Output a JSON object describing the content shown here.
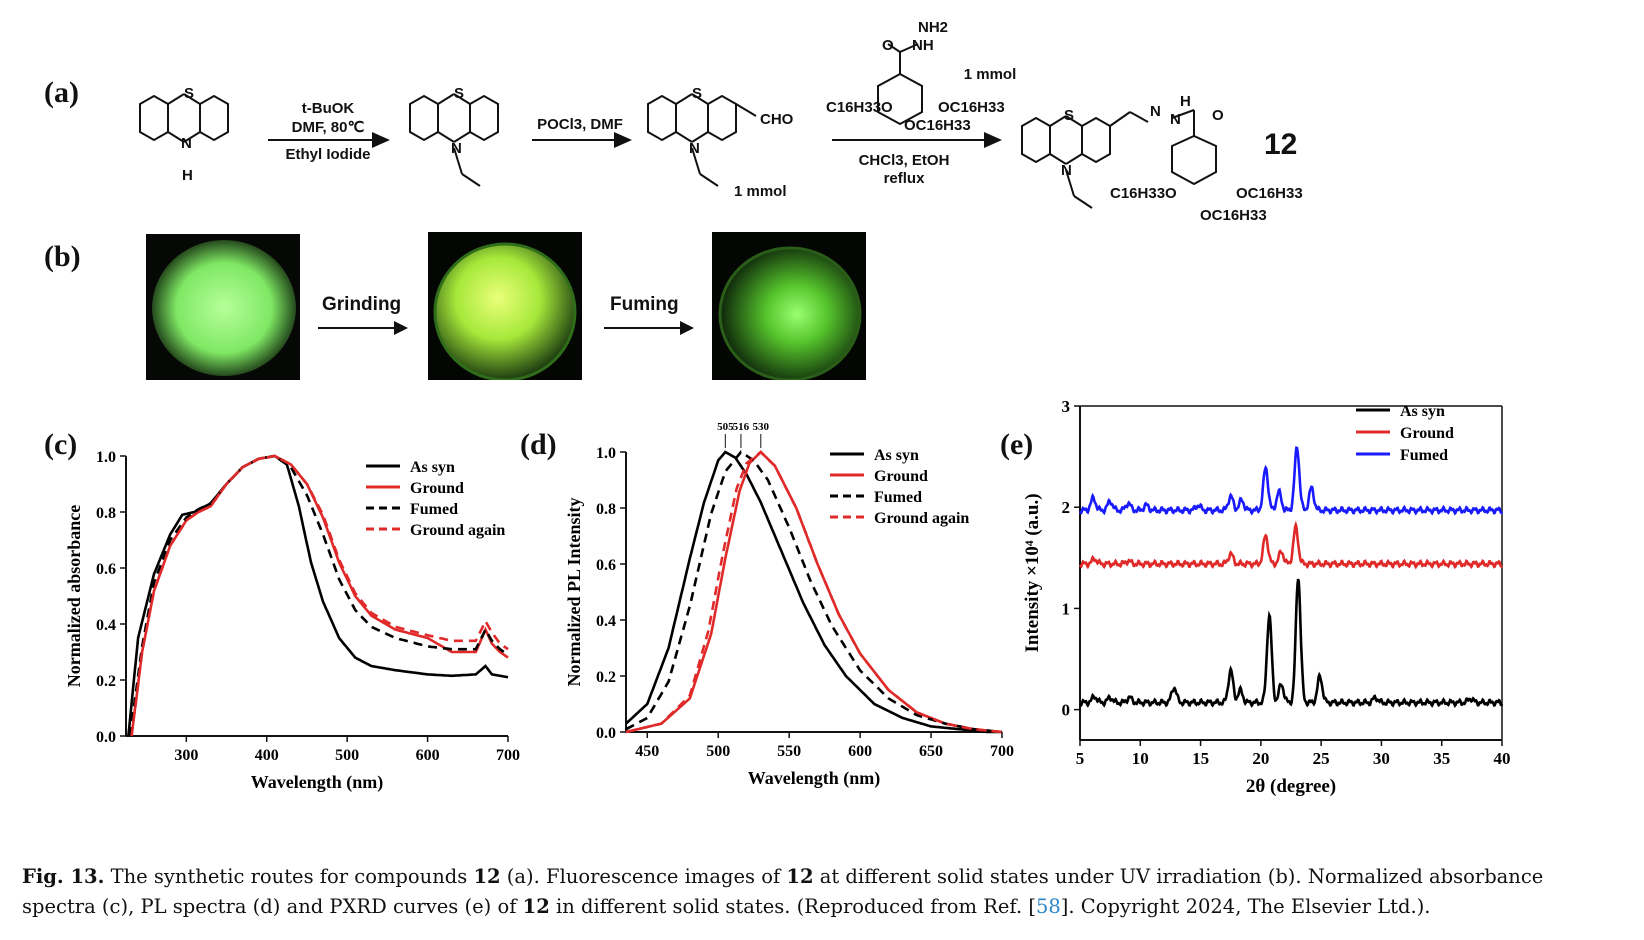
{
  "panels": {
    "a": "(a)",
    "b": "(b)",
    "c": "(c)",
    "d": "(d)",
    "e": "(e)"
  },
  "scheme": {
    "step1_top": "t-BuOK",
    "step1_mid": "DMF, 80℃",
    "step1_bottom": "Ethyl Iodide",
    "step2_top": "POCl3, DMF",
    "step3_top": "1 mmol",
    "step3_bottom1": "CHCl3, EtOH",
    "step3_bottom2": "reflux",
    "aldehyde_amount": "1 mmol",
    "cho": "CHO",
    "product_label": "12",
    "S": "S",
    "N": "N",
    "H": "H",
    "O": "O",
    "NH": "NH",
    "NH2": "NH2",
    "OC16H33": "OC16H33",
    "C16H33O": "C16H33O"
  },
  "images": {
    "grinding_label": "Grinding",
    "fuming_label": "Fuming",
    "colors": {
      "glow": "#7dff5c",
      "dim": "#2f8a1c",
      "bg": "#050805"
    }
  },
  "chart_data": [
    {
      "type": "line",
      "panel": "c",
      "xlabel": "Wavelength (nm)",
      "ylabel": "Normalized absorbance",
      "xlim": [
        225,
        700
      ],
      "ylim": [
        0,
        1.0
      ],
      "xticks": [
        300,
        400,
        500,
        600,
        700
      ],
      "yticks": [
        0.0,
        0.2,
        0.4,
        0.6,
        0.8,
        1.0
      ],
      "xtick_labels": [
        "300",
        "400",
        "500",
        "600",
        "700"
      ],
      "ytick_labels": [
        "0.0",
        "0.2",
        "0.4",
        "0.6",
        "0.8",
        "1.0"
      ],
      "legend": "top-right",
      "series": [
        {
          "name": "As syn",
          "color": "#000000",
          "dash": false,
          "x": [
            228,
            240,
            260,
            280,
            295,
            310,
            330,
            350,
            370,
            390,
            410,
            425,
            440,
            455,
            470,
            490,
            510,
            530,
            560,
            600,
            630,
            660,
            672,
            680,
            690,
            700
          ],
          "y": [
            0.0,
            0.35,
            0.58,
            0.72,
            0.79,
            0.8,
            0.83,
            0.9,
            0.96,
            0.99,
            1.0,
            0.97,
            0.82,
            0.62,
            0.48,
            0.35,
            0.28,
            0.25,
            0.235,
            0.22,
            0.215,
            0.22,
            0.25,
            0.22,
            0.215,
            0.21
          ]
        },
        {
          "name": "Ground",
          "color": "#e02a2a",
          "dash": false,
          "x": [
            232,
            245,
            260,
            280,
            300,
            315,
            330,
            350,
            370,
            390,
            410,
            430,
            450,
            470,
            490,
            510,
            530,
            560,
            600,
            630,
            660,
            672,
            680,
            690,
            700
          ],
          "y": [
            0.0,
            0.3,
            0.52,
            0.68,
            0.77,
            0.8,
            0.82,
            0.9,
            0.96,
            0.99,
            1.0,
            0.97,
            0.9,
            0.78,
            0.62,
            0.5,
            0.43,
            0.38,
            0.35,
            0.3,
            0.3,
            0.38,
            0.33,
            0.3,
            0.28
          ]
        },
        {
          "name": "Fumed",
          "color": "#000000",
          "dash": true,
          "x": [
            230,
            245,
            260,
            280,
            300,
            315,
            330,
            350,
            370,
            390,
            410,
            430,
            450,
            470,
            490,
            510,
            530,
            560,
            600,
            630,
            660,
            672,
            680,
            690,
            700
          ],
          "y": [
            0.0,
            0.32,
            0.55,
            0.7,
            0.78,
            0.81,
            0.83,
            0.9,
            0.96,
            0.99,
            1.0,
            0.96,
            0.86,
            0.72,
            0.56,
            0.45,
            0.39,
            0.35,
            0.32,
            0.31,
            0.31,
            0.38,
            0.34,
            0.31,
            0.29
          ]
        },
        {
          "name": "Ground again",
          "color": "#e02a2a",
          "dash": true,
          "x": [
            232,
            245,
            260,
            280,
            300,
            315,
            330,
            350,
            370,
            390,
            410,
            430,
            450,
            470,
            490,
            510,
            530,
            560,
            600,
            630,
            660,
            672,
            680,
            690,
            700
          ],
          "y": [
            0.0,
            0.3,
            0.52,
            0.68,
            0.77,
            0.8,
            0.82,
            0.9,
            0.96,
            0.99,
            1.0,
            0.97,
            0.9,
            0.79,
            0.63,
            0.51,
            0.44,
            0.39,
            0.36,
            0.34,
            0.34,
            0.41,
            0.37,
            0.33,
            0.31
          ]
        }
      ]
    },
    {
      "type": "line",
      "panel": "d",
      "xlabel": "Wavelength (nm)",
      "ylabel": "Normalized PL Intensity",
      "xlim": [
        435,
        700
      ],
      "ylim": [
        0,
        1.0
      ],
      "xticks": [
        450,
        500,
        550,
        600,
        650,
        700
      ],
      "yticks": [
        0.0,
        0.2,
        0.4,
        0.6,
        0.8,
        1.0
      ],
      "xtick_labels": [
        "450",
        "500",
        "550",
        "600",
        "650",
        "700"
      ],
      "ytick_labels": [
        "0.0",
        "0.2",
        "0.4",
        "0.6",
        "0.8",
        "1.0"
      ],
      "peak_labels": [
        "505",
        "516",
        "530"
      ],
      "peak_positions": [
        505,
        516,
        530
      ],
      "legend": "top-right",
      "series": [
        {
          "name": "As syn",
          "color": "#000000",
          "dash": false,
          "x": [
            435,
            450,
            465,
            480,
            490,
            500,
            505,
            512,
            520,
            530,
            545,
            560,
            575,
            590,
            610,
            630,
            650,
            670,
            690,
            700
          ],
          "y": [
            0.03,
            0.1,
            0.3,
            0.62,
            0.82,
            0.97,
            1.0,
            0.98,
            0.92,
            0.82,
            0.64,
            0.46,
            0.31,
            0.2,
            0.1,
            0.05,
            0.02,
            0.01,
            0.0,
            0.0
          ]
        },
        {
          "name": "Ground",
          "color": "#e02a2a",
          "dash": false,
          "x": [
            435,
            460,
            480,
            495,
            505,
            515,
            522,
            530,
            540,
            555,
            570,
            585,
            600,
            620,
            640,
            660,
            680,
            700
          ],
          "y": [
            0.0,
            0.03,
            0.12,
            0.35,
            0.62,
            0.86,
            0.96,
            1.0,
            0.95,
            0.8,
            0.6,
            0.42,
            0.28,
            0.15,
            0.07,
            0.03,
            0.01,
            0.0
          ]
        },
        {
          "name": "Fumed",
          "color": "#000000",
          "dash": true,
          "x": [
            435,
            450,
            465,
            480,
            495,
            505,
            516,
            525,
            535,
            550,
            565,
            580,
            600,
            620,
            640,
            660,
            680,
            700
          ],
          "y": [
            0.01,
            0.05,
            0.18,
            0.45,
            0.78,
            0.93,
            1.0,
            0.97,
            0.9,
            0.73,
            0.54,
            0.38,
            0.22,
            0.12,
            0.06,
            0.03,
            0.01,
            0.0
          ]
        },
        {
          "name": "Ground again",
          "color": "#e02a2a",
          "dash": true,
          "x": [
            435,
            460,
            480,
            493,
            503,
            513,
            520,
            530,
            540,
            555,
            570,
            585,
            600,
            620,
            640,
            660,
            680,
            700
          ],
          "y": [
            0.0,
            0.03,
            0.13,
            0.36,
            0.63,
            0.87,
            0.96,
            1.0,
            0.95,
            0.8,
            0.6,
            0.42,
            0.28,
            0.15,
            0.07,
            0.03,
            0.01,
            0.0
          ]
        }
      ]
    },
    {
      "type": "line",
      "panel": "e",
      "xlabel": "2θ (degree)",
      "ylabel": "Intensity ×10⁴ (a.u.)",
      "xlim": [
        5,
        40
      ],
      "ylim": [
        -0.3,
        3.0
      ],
      "xticks": [
        5,
        10,
        15,
        20,
        25,
        30,
        35,
        40
      ],
      "yticks": [
        0,
        1,
        2,
        3
      ],
      "xtick_labels": [
        "5",
        "10",
        "15",
        "20",
        "25",
        "30",
        "35",
        "40"
      ],
      "ytick_labels": [
        "0",
        "1",
        "2",
        "3"
      ],
      "legend": "top-right",
      "series": [
        {
          "name": "As syn",
          "color": "#000000",
          "offset": 0.07,
          "peaks": [
            [
              6.2,
              0.06
            ],
            [
              7.5,
              0.05
            ],
            [
              9.1,
              0.05
            ],
            [
              12.8,
              0.15
            ],
            [
              17.5,
              0.32
            ],
            [
              18.3,
              0.12
            ],
            [
              20.7,
              0.86
            ],
            [
              21.7,
              0.18
            ],
            [
              23.1,
              1.24
            ],
            [
              24.9,
              0.26
            ],
            [
              29.5,
              0.05
            ],
            [
              37.4,
              0.04
            ]
          ]
        },
        {
          "name": "Ground",
          "color": "#e02a2a",
          "offset": 1.44,
          "peaks": [
            [
              6.2,
              0.05
            ],
            [
              9.0,
              0.03
            ],
            [
              17.5,
              0.1
            ],
            [
              20.4,
              0.28
            ],
            [
              21.7,
              0.12
            ],
            [
              22.9,
              0.36
            ]
          ]
        },
        {
          "name": "Fumed",
          "color": "#1a1aff",
          "offset": 1.97,
          "peaks": [
            [
              6.1,
              0.12
            ],
            [
              7.5,
              0.09
            ],
            [
              9.0,
              0.07
            ],
            [
              10.5,
              0.05
            ],
            [
              14.8,
              0.05
            ],
            [
              17.5,
              0.14
            ],
            [
              18.4,
              0.1
            ],
            [
              20.4,
              0.42
            ],
            [
              21.5,
              0.18
            ],
            [
              23.0,
              0.62
            ],
            [
              24.2,
              0.22
            ]
          ]
        }
      ]
    }
  ],
  "caption": {
    "fig": "Fig. 13.",
    "t1": " The synthetic routes for compounds ",
    "c12a": "12",
    "t2": " (a). Fluorescence images of ",
    "c12b": "12",
    "t3": " at different solid states under UV irradiation (b). Normalized absorbance spectra (c), PL spectra (d) and PXRD curves (e) of ",
    "c12c": "12",
    "t4": " in different solid states. (Reproduced from Ref. [",
    "ref": "58",
    "t5": "]. Copyright 2024, The Elsevier Ltd.)."
  }
}
